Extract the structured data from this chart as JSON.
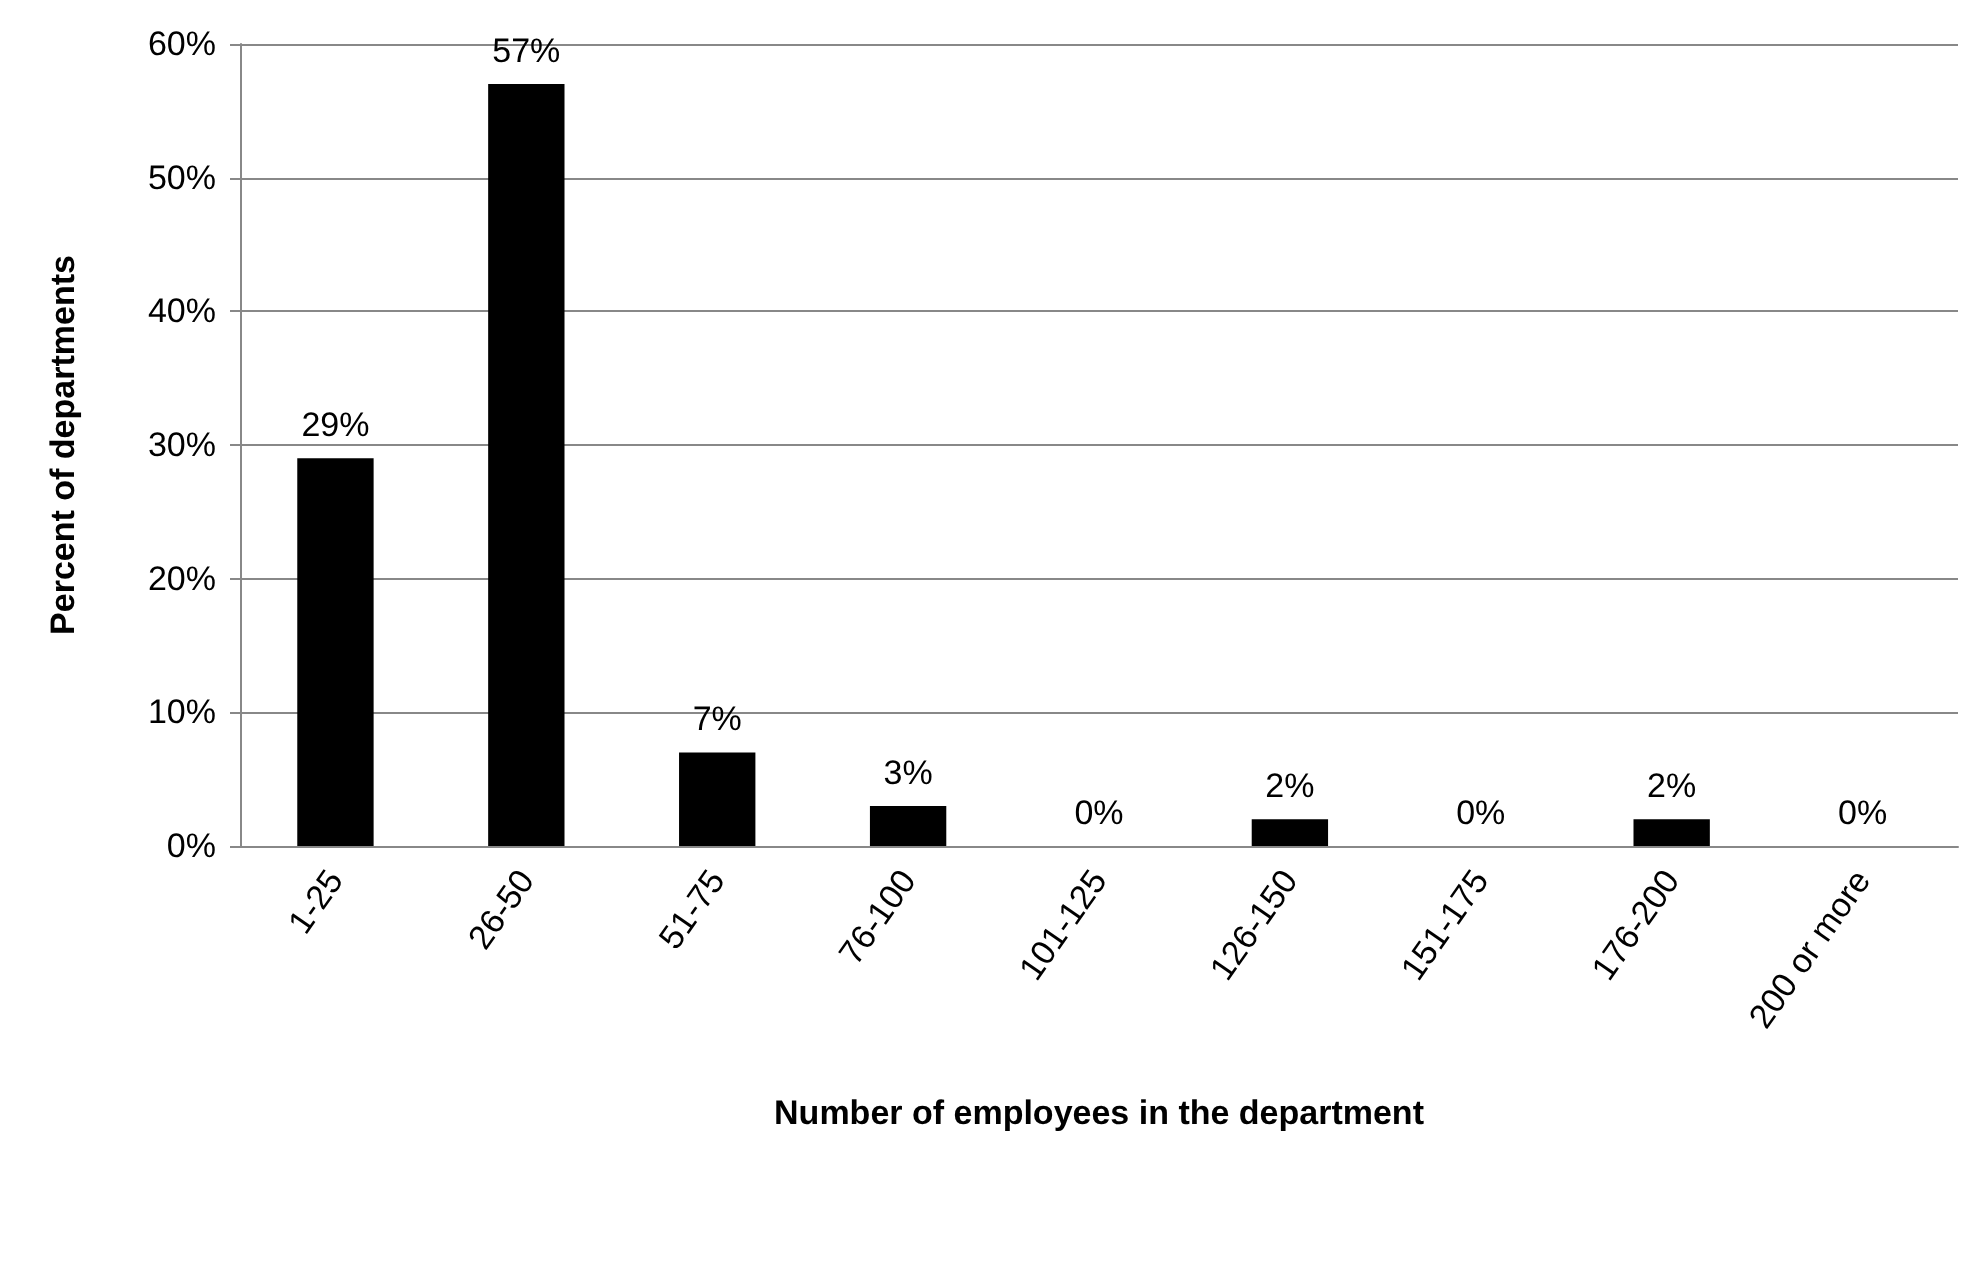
{
  "chart_data": {
    "type": "bar",
    "xlabel": "Number of employees in the department",
    "ylabel": "Percent of departments",
    "categories": [
      "1-25",
      "26-50",
      "51-75",
      "76-100",
      "101-125",
      "126-150",
      "151-175",
      "176-200",
      "200 or more"
    ],
    "values": [
      29,
      57,
      7,
      3,
      0,
      2,
      0,
      2,
      0
    ],
    "value_labels": [
      "29%",
      "57%",
      "7%",
      "3%",
      "0%",
      "2%",
      "0%",
      "2%",
      "0%"
    ],
    "color": "#000000",
    "ylim": [
      0,
      60
    ],
    "yticks": [
      {
        "value": 0,
        "label": "0%"
      },
      {
        "value": 10,
        "label": "10%"
      },
      {
        "value": 20,
        "label": "20%"
      },
      {
        "value": 30,
        "label": "30%"
      },
      {
        "value": 40,
        "label": "40%"
      },
      {
        "value": 50,
        "label": "50%"
      },
      {
        "value": 60,
        "label": "60%"
      }
    ],
    "grid": "y"
  }
}
